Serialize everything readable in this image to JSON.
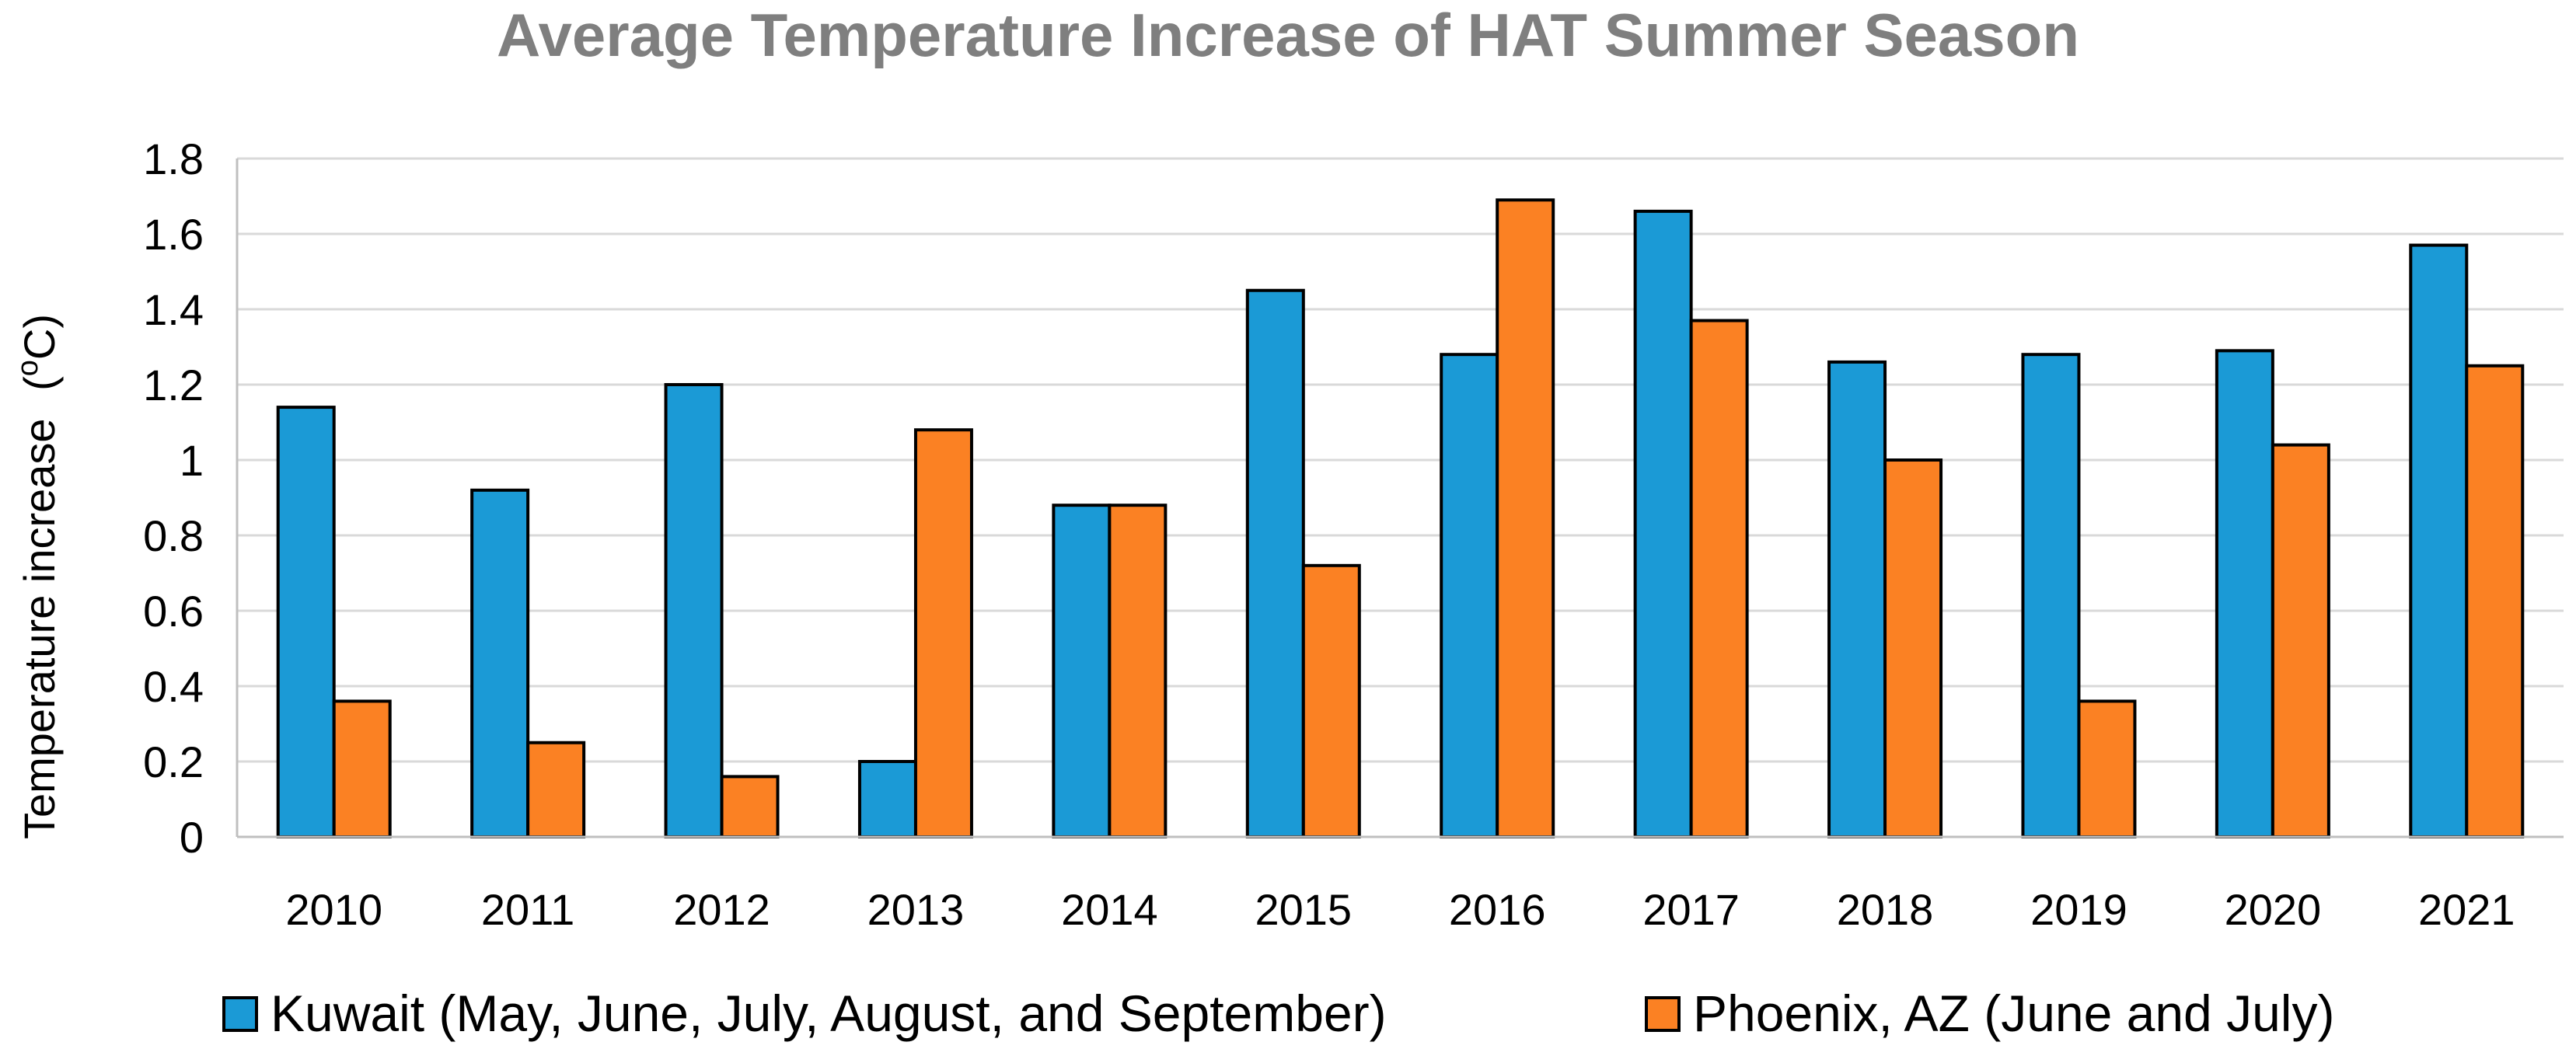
{
  "chart_data": {
    "type": "bar",
    "title": "Average Temperature Increase of HAT Summer Season",
    "xlabel": "",
    "ylabel": "Temperature increase",
    "ylabel_unit": "(°C)",
    "ylabel_unit_pre": "(",
    "ylabel_unit_sup": "o",
    "ylabel_unit_post": "C)",
    "ylim": [
      0,
      1.8
    ],
    "yticks": [
      0,
      0.2,
      0.4,
      0.6,
      0.8,
      1,
      1.2,
      1.4,
      1.6,
      1.8
    ],
    "ytick_labels": [
      "0",
      "0.2",
      "0.4",
      "0.6",
      "0.8",
      "1",
      "1.2",
      "1.4",
      "1.6",
      "1.8"
    ],
    "grid": true,
    "legend_position": "bottom",
    "categories": [
      "2010",
      "2011",
      "2012",
      "2013",
      "2014",
      "2015",
      "2016",
      "2017",
      "2018",
      "2019",
      "2020",
      "2021"
    ],
    "series": [
      {
        "name": "Kuwait (May, June, July, August, and September)",
        "color": "#1b9ad6",
        "values": [
          1.14,
          0.92,
          1.2,
          0.2,
          0.88,
          1.45,
          1.28,
          1.66,
          1.26,
          1.28,
          1.29,
          1.57
        ]
      },
      {
        "name": "Phoenix, AZ (June and July)",
        "color": "#fb8123",
        "values": [
          0.36,
          0.25,
          0.16,
          1.08,
          0.88,
          0.72,
          1.69,
          1.37,
          1.0,
          0.36,
          1.04,
          1.25
        ]
      }
    ]
  }
}
